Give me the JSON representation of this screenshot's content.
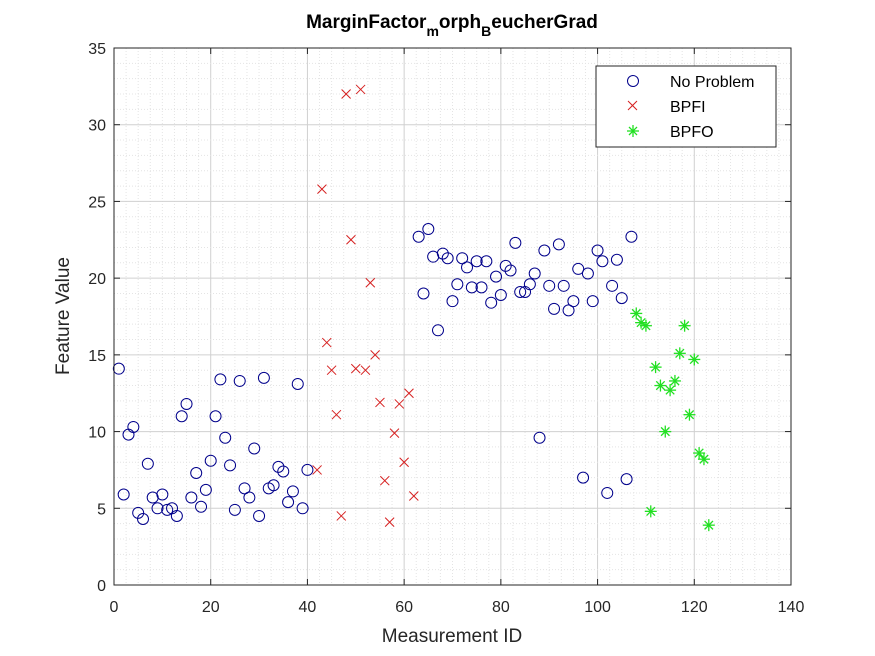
{
  "chart_data": {
    "type": "scatter",
    "title": {
      "main": "MarginFactor",
      "sub1": "m",
      "mid": "orph",
      "sub2": "B",
      "end": "eucherGrad"
    },
    "xlabel": "Measurement ID",
    "ylabel": "Feature Value",
    "xlim": [
      0,
      140
    ],
    "ylim": [
      0,
      35
    ],
    "xticks": [
      0,
      20,
      40,
      60,
      80,
      100,
      120,
      140
    ],
    "yticks": [
      0,
      5,
      10,
      15,
      20,
      25,
      30,
      35
    ],
    "grid": "minor-dotted",
    "legend_position": "top-right",
    "series": [
      {
        "name": "No Problem",
        "marker": "circle",
        "color": "#00008B",
        "points": [
          [
            1,
            14.1
          ],
          [
            2,
            5.9
          ],
          [
            3,
            9.8
          ],
          [
            4,
            10.3
          ],
          [
            5,
            4.7
          ],
          [
            6,
            4.3
          ],
          [
            7,
            7.9
          ],
          [
            8,
            5.7
          ],
          [
            9,
            5.0
          ],
          [
            10,
            5.9
          ],
          [
            11,
            4.9
          ],
          [
            12,
            5.0
          ],
          [
            13,
            4.5
          ],
          [
            14,
            11.0
          ],
          [
            15,
            11.8
          ],
          [
            16,
            5.7
          ],
          [
            17,
            7.3
          ],
          [
            18,
            5.1
          ],
          [
            19,
            6.2
          ],
          [
            20,
            8.1
          ],
          [
            21,
            11.0
          ],
          [
            22,
            13.4
          ],
          [
            23,
            9.6
          ],
          [
            24,
            7.8
          ],
          [
            25,
            4.9
          ],
          [
            26,
            13.3
          ],
          [
            27,
            6.3
          ],
          [
            28,
            5.7
          ],
          [
            29,
            8.9
          ],
          [
            30,
            4.5
          ],
          [
            31,
            13.5
          ],
          [
            32,
            6.3
          ],
          [
            33,
            6.5
          ],
          [
            34,
            7.7
          ],
          [
            35,
            7.4
          ],
          [
            36,
            5.4
          ],
          [
            37,
            6.1
          ],
          [
            38,
            13.1
          ],
          [
            39,
            5.0
          ],
          [
            40,
            7.5
          ],
          [
            64,
            19.0
          ],
          [
            65,
            23.2
          ],
          [
            66,
            21.4
          ],
          [
            67,
            16.6
          ],
          [
            68,
            21.6
          ],
          [
            69,
            21.3
          ],
          [
            70,
            18.5
          ],
          [
            71,
            19.6
          ],
          [
            72,
            21.3
          ],
          [
            73,
            20.7
          ],
          [
            74,
            19.4
          ],
          [
            75,
            21.1
          ],
          [
            76,
            19.4
          ],
          [
            77,
            21.1
          ],
          [
            78,
            18.4
          ],
          [
            79,
            20.1
          ],
          [
            80,
            18.9
          ],
          [
            81,
            20.8
          ],
          [
            82,
            20.5
          ],
          [
            83,
            22.3
          ],
          [
            84,
            19.1
          ],
          [
            85,
            19.1
          ],
          [
            86,
            19.6
          ],
          [
            87,
            20.3
          ],
          [
            89,
            21.8
          ],
          [
            90,
            19.5
          ],
          [
            91,
            18.0
          ],
          [
            92,
            22.2
          ],
          [
            93,
            19.5
          ],
          [
            94,
            17.9
          ],
          [
            95,
            18.5
          ],
          [
            96,
            20.6
          ],
          [
            98,
            20.3
          ],
          [
            99,
            18.5
          ],
          [
            100,
            21.8
          ],
          [
            101,
            21.1
          ],
          [
            103,
            19.5
          ],
          [
            104,
            21.2
          ],
          [
            105,
            18.7
          ],
          [
            107,
            22.7
          ],
          [
            63,
            22.7
          ],
          [
            88,
            9.6
          ],
          [
            97,
            7.0
          ],
          [
            102,
            6.0
          ],
          [
            106,
            6.9
          ]
        ]
      },
      {
        "name": "BPFI",
        "marker": "x",
        "color": "#D62020",
        "points": [
          [
            42,
            7.5
          ],
          [
            43,
            25.8
          ],
          [
            44,
            15.8
          ],
          [
            45,
            14.0
          ],
          [
            46,
            11.1
          ],
          [
            47,
            4.5
          ],
          [
            48,
            32.0
          ],
          [
            49,
            22.5
          ],
          [
            50,
            14.1
          ],
          [
            51,
            32.3
          ],
          [
            52,
            14.0
          ],
          [
            53,
            19.7
          ],
          [
            54,
            15.0
          ],
          [
            55,
            11.9
          ],
          [
            56,
            6.8
          ],
          [
            57,
            4.1
          ],
          [
            58,
            9.9
          ],
          [
            59,
            11.8
          ],
          [
            60,
            8.0
          ],
          [
            61,
            12.5
          ],
          [
            62,
            5.8
          ]
        ]
      },
      {
        "name": "BPFO",
        "marker": "asterisk",
        "color": "#22E022",
        "points": [
          [
            108,
            17.7
          ],
          [
            109,
            17.1
          ],
          [
            110,
            16.9
          ],
          [
            111,
            4.8
          ],
          [
            112,
            14.2
          ],
          [
            113,
            13.0
          ],
          [
            114,
            10.0
          ],
          [
            115,
            12.7
          ],
          [
            116,
            13.3
          ],
          [
            117,
            15.1
          ],
          [
            118,
            16.9
          ],
          [
            119,
            11.1
          ],
          [
            120,
            14.7
          ],
          [
            121,
            8.6
          ],
          [
            122,
            8.2
          ],
          [
            123,
            3.9
          ]
        ]
      }
    ]
  }
}
